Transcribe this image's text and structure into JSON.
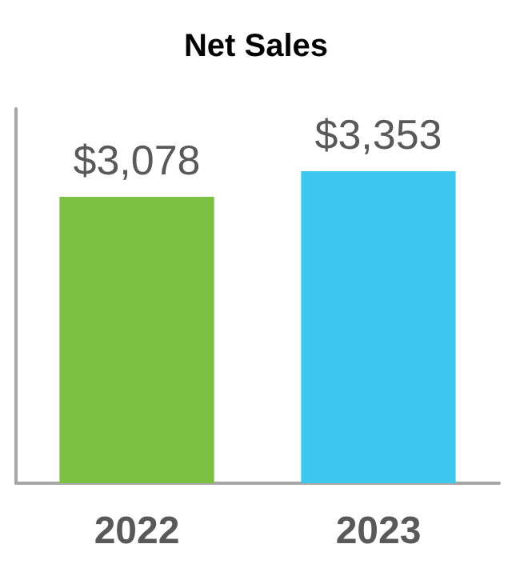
{
  "chart_data": {
    "type": "bar",
    "title": "Net Sales",
    "categories": [
      "2022",
      "2023"
    ],
    "values": [
      3078,
      3353
    ],
    "colors": [
      "#7dc142",
      "#3ec8f0"
    ],
    "value_labels": [
      "$3,078",
      "$3,353"
    ]
  }
}
